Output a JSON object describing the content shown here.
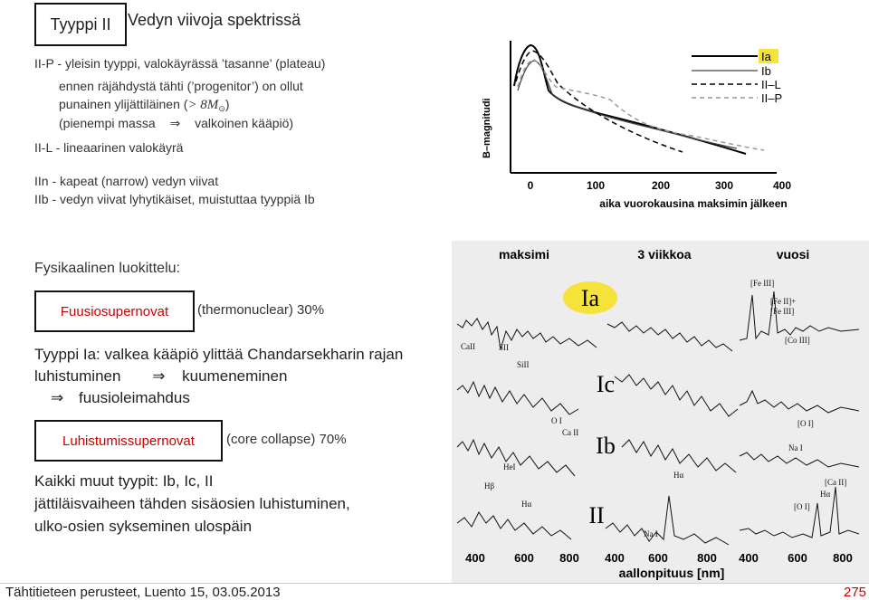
{
  "title": {
    "box_label": "Tyyppi II",
    "rest": "Vedyn viivoja spektrissä"
  },
  "lines": {
    "l1": "II-P - yleisin tyyppi, valokäyrässä ’tasanne’ (plateau)",
    "l2": "ennen räjähdystä tähti (’progenitor’) on ollut",
    "l3_pre": "punainen ylijättiläinen (",
    "l3_math": "> 8M",
    "l3_post": ")",
    "l4_pre": "(pienempi massa",
    "l4_arrow": "⇒",
    "l4_post": "valkoinen kääpiö)",
    "l5": "II-L - lineaarinen valokäyrä",
    "l6": "IIn - kapeat (narrow) vedyn viivat",
    "l7": "IIb - vedyn viivat lyhytikäiset, muistuttaa tyyppiä Ib"
  },
  "section": {
    "heading": "Fysikaalinen luokittelu:",
    "box1": "Fuusiosupernovat",
    "box1_note": "(thermonuclear) 30%",
    "ia1": "Tyyppi Ia: valkea kääpiö ylittää Chandarsekharin rajan",
    "ia2_pre": "luhistuminen",
    "ia2_arrow": "⇒",
    "ia2_post": "kuumeneminen",
    "ia3_arrow": "⇒",
    "ia3_post": "fuusioleimahdus",
    "box2": "Luhistumissupernovat",
    "box2_note": "(core collapse) 70%",
    "k1": "Kaikki muut tyypit: Ib, Ic, II",
    "k2": "jättiläisvaiheen tähden sisäosien luhistuminen,",
    "k3": "ulko-osien sykseminen ulospäin"
  },
  "footer": {
    "left": "Tähtitieteen perusteet, Luento 15, 03.05.2013",
    "page": "275"
  },
  "lightcurve": {
    "ylabel": "B–magnitudi",
    "xlabel": "aika vuorokausina maksimin jälkeen",
    "xticks": [
      "0",
      "100",
      "200",
      "300",
      "400"
    ],
    "legend": [
      "Ia",
      "Ib",
      "II–L",
      "II–P"
    ]
  },
  "spectra": {
    "top_labels": [
      "maksimi",
      "3 viikkoa",
      "vuosi"
    ],
    "types": [
      "Ia",
      "Ic",
      "Ib",
      "II"
    ],
    "lines": [
      "[Fe III]",
      "[Fe II]+",
      "[Fe III]",
      "[Co III]",
      "CaII",
      "SII",
      "SiII",
      "O I",
      "Ca II",
      "[O I]",
      "Na I",
      "HeI",
      "Hβ",
      "Hα",
      "Hα",
      "[Ca II]",
      "Hα",
      "[O I]",
      "Na I"
    ],
    "xticks": [
      "400",
      "600",
      "800",
      "400",
      "600",
      "800",
      "400",
      "600",
      "800"
    ],
    "xlabel": "aallonpituus [nm]"
  }
}
